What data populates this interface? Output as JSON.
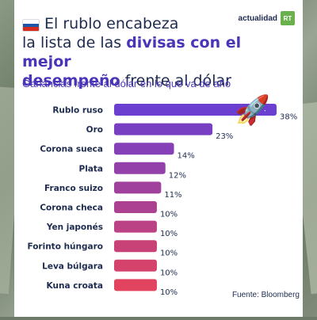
{
  "header": {
    "title_line1": "El rublo encabeza",
    "title_line2_plain": "la lista de las ",
    "title_line2_bold": "divisas con el mejor",
    "title_line3_bold": "desempeño",
    "title_line3_plain": " frente al dólar",
    "brand_text": "actualidad",
    "brand_logo": "RT"
  },
  "subtitle": "Ganancias frente al dólar en lo que va de año",
  "source": "Fuente: Bloomberg",
  "colors": {
    "title": "#1d2b4f",
    "accent": "#4a35b8",
    "bar_start": "#6b3fd0",
    "bar_end": "#e2435f"
  },
  "icons": {
    "flag": "russia-flag-icon",
    "rocket": "rocket-icon"
  },
  "chart_data": {
    "type": "bar",
    "orientation": "horizontal",
    "categories": [
      "Rublo ruso",
      "Oro",
      "Corona sueca",
      "Plata",
      "Franco suizo",
      "Corona checa",
      "Yen japonés",
      "Forinto húngaro",
      "Leva búlgara",
      "Kuna croata"
    ],
    "values": [
      38,
      23,
      14,
      12,
      11,
      10,
      10,
      10,
      10,
      10
    ],
    "labels": [
      "38%",
      "23%",
      "14%",
      "12%",
      "11%",
      "10%",
      "10%",
      "10%",
      "10%",
      "10%"
    ],
    "title": "Ganancias frente al dólar en lo que va de año",
    "xlabel": "",
    "ylabel": "",
    "grid": false
  }
}
